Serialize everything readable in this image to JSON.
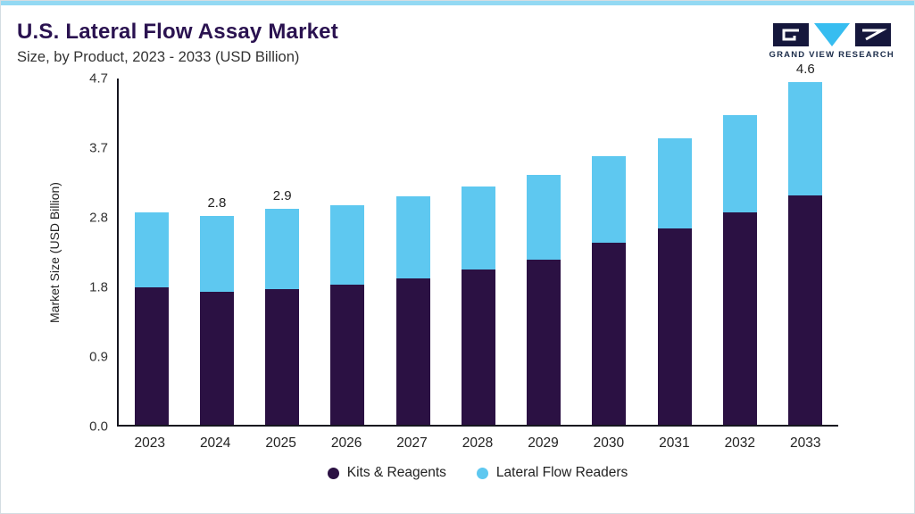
{
  "header": {
    "title": "U.S. Lateral Flow Assay Market",
    "subtitle": "Size, by Product, 2023 - 2033 (USD Billion)",
    "logo_text": "GRAND VIEW RESEARCH"
  },
  "colors": {
    "kits": "#2b1143",
    "readers": "#5ec8f0",
    "top_accent": "#93d9f3",
    "title_text": "#2a1250",
    "axis": "#15151f"
  },
  "chart_data": {
    "type": "bar",
    "stacked": true,
    "title": "U.S. Lateral Flow Assay Market",
    "subtitle": "Size, by Product, 2023 - 2033 (USD Billion)",
    "ylabel": "Market Size (USD Billion)",
    "xlabel": "",
    "categories": [
      "2023",
      "2024",
      "2025",
      "2026",
      "2027",
      "2028",
      "2029",
      "2030",
      "2031",
      "2032",
      "2033"
    ],
    "series": [
      {
        "name": "Kits & Reagents",
        "color": "#2b1143",
        "values": [
          1.85,
          1.78,
          1.82,
          1.88,
          1.96,
          2.08,
          2.22,
          2.44,
          2.63,
          2.85,
          3.08
        ]
      },
      {
        "name": "Lateral Flow Readers",
        "color": "#5ec8f0",
        "values": [
          1.0,
          1.02,
          1.08,
          1.07,
          1.1,
          1.12,
          1.13,
          1.16,
          1.22,
          1.3,
          1.52
        ]
      }
    ],
    "totals": [
      2.85,
      2.8,
      2.9,
      2.95,
      3.06,
      3.2,
      3.35,
      3.6,
      3.85,
      4.15,
      4.6
    ],
    "bar_labels": [
      "",
      "2.8",
      "2.9",
      "",
      "",
      "",
      "",
      "",
      "",
      "",
      "4.6"
    ],
    "yticks": [
      "4.7",
      "3.7",
      "2.8",
      "1.8",
      "0.9",
      "0.0"
    ],
    "ylim": [
      0,
      4.7
    ],
    "axis_max": 4.67,
    "grid": false,
    "legend_position": "bottom"
  }
}
